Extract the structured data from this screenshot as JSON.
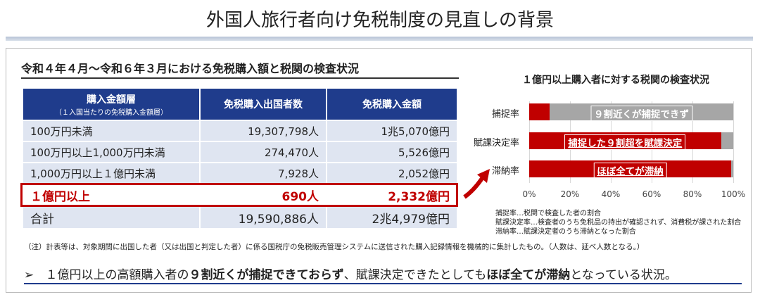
{
  "title": "外国人旅行者向け免税制度の見直しの背景",
  "section_title": "令和４年４月～令和６年３月における免税購入額と税関の検査状況",
  "table": {
    "headers": [
      {
        "main": "購入金額層",
        "sub": "（１入国当たりの免税購入金額層）"
      },
      {
        "main": "免税購入出国者数",
        "sub": ""
      },
      {
        "main": "免税購入金額",
        "sub": ""
      }
    ],
    "rows": [
      [
        "100万円未満",
        "19,307,798人",
        "1兆5,070億円"
      ],
      [
        "100万円以上1,000万円未満",
        "274,470人",
        "5,526億円"
      ],
      [
        "1,000万円以上１億円未満",
        "7,928人",
        "2,052億円"
      ]
    ],
    "highlight_row": [
      "１億円以上",
      "690人",
      "2,332億円"
    ],
    "total_row": [
      "合計",
      "19,590,886人",
      "2兆4,979億円"
    ]
  },
  "chart_data": {
    "type": "bar",
    "orientation": "horizontal",
    "stacked": true,
    "title": "１億円以上購入者に対する税関の検査状況",
    "categories": [
      "捕捉率",
      "賦課決定率",
      "滞納率"
    ],
    "series": [
      {
        "values": [
          10,
          94,
          99
        ]
      },
      {
        "values": [
          90,
          6,
          1
        ]
      }
    ],
    "bar_labels": [
      "９割近くが捕捉できず",
      "捕捉した９割超を賦課決定",
      "ほぼ全てが滞納"
    ],
    "x_ticks": [
      "0%",
      "20%",
      "40%",
      "60%",
      "80%",
      "100%"
    ],
    "xlim": [
      0,
      100
    ],
    "colors": {
      "red": "#c00000",
      "gray": "#a6a6a6"
    }
  },
  "legend_notes": [
    "捕捉率…税関で検査した者の割合",
    "賦課決定率…検査者のうち免税品の持出が確認されず、消費税が課された割合",
    "滞納率…賦課決定者のうち滞納となった割合"
  ],
  "note": "（注）計表等は、対象期間に出国した者（又は出国と判定した者）に係る国税庁の免税販売管理システムに送信された購入記録情報を機械的に集計したもの。（人数は、延べ人数となる。）",
  "conclusion": {
    "bullet": "➢",
    "part1": "１億円以上の高額購入者の",
    "bold1": "９割近くが捕捉できておらず",
    "part2": "、賦課決定できたとしても",
    "bold2": "ほぼ全てが滞納",
    "part3": "となっている状況。"
  }
}
